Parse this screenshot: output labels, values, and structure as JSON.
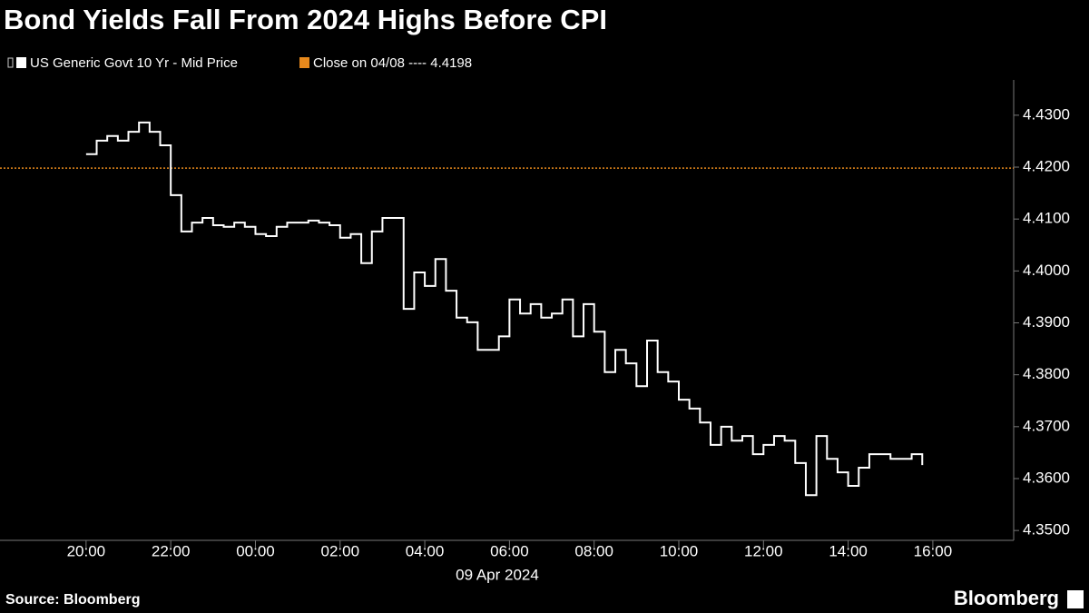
{
  "chart_data": {
    "type": "line",
    "title": "Bond Yields Fall From 2024 Highs Before CPI",
    "x_label": "09 Apr 2024",
    "source": "Source: Bloomberg",
    "brand": "Bloomberg",
    "x": [
      "20:00",
      "20:15",
      "20:30",
      "20:45",
      "21:00",
      "21:15",
      "21:30",
      "21:45",
      "22:00",
      "22:15",
      "22:30",
      "22:45",
      "23:00",
      "23:15",
      "23:30",
      "23:45",
      "00:00",
      "00:15",
      "00:30",
      "00:45",
      "01:00",
      "01:15",
      "01:30",
      "01:45",
      "02:00",
      "02:15",
      "02:30",
      "02:45",
      "03:00",
      "03:15",
      "03:30",
      "03:45",
      "04:00",
      "04:15",
      "04:30",
      "04:45",
      "05:00",
      "05:15",
      "05:30",
      "05:45",
      "06:00",
      "06:15",
      "06:30",
      "06:45",
      "07:00",
      "07:15",
      "07:30",
      "07:45",
      "08:00",
      "08:15",
      "08:30",
      "08:45",
      "09:00",
      "09:15",
      "09:30",
      "09:45",
      "10:00",
      "10:15",
      "10:30",
      "10:45",
      "11:00",
      "11:15",
      "11:30",
      "11:45",
      "12:00",
      "12:15",
      "12:30",
      "12:45",
      "13:00",
      "13:15",
      "13:30",
      "13:45",
      "14:00",
      "14:15",
      "14:30",
      "14:45",
      "15:00",
      "15:15",
      "15:30",
      "15:45"
    ],
    "series": [
      {
        "name": "US Generic Govt 10 Yr - Mid Price",
        "color": "#ffffff",
        "values": [
          4.4225,
          4.4251,
          4.426,
          4.4251,
          4.4268,
          4.4286,
          4.4268,
          4.4242,
          4.4146,
          4.4076,
          4.4093,
          4.4102,
          4.4088,
          4.4085,
          4.4093,
          4.4085,
          4.4071,
          4.4067,
          4.4085,
          4.4093,
          4.4093,
          4.4097,
          4.4093,
          4.4088,
          4.4064,
          4.4071,
          4.4015,
          4.4076,
          4.4102,
          4.4102,
          4.3927,
          4.3997,
          4.3971,
          4.4023,
          4.3962,
          4.391,
          4.3901,
          4.3848,
          4.3848,
          4.3874,
          4.3945,
          4.3918,
          4.3936,
          4.391,
          4.3918,
          4.3945,
          4.3874,
          4.3936,
          4.3883,
          4.3805,
          4.3848,
          4.3822,
          4.3778,
          4.3866,
          4.3805,
          4.3787,
          4.3752,
          4.3735,
          4.3708,
          4.3665,
          4.37,
          4.3673,
          4.3682,
          4.3647,
          4.3665,
          4.3682,
          4.3673,
          4.363,
          4.3568,
          4.3682,
          4.3638,
          4.3612,
          4.3586,
          4.3621,
          4.3647,
          4.3647,
          4.3638,
          4.3638,
          4.3647,
          4.3626
        ]
      }
    ],
    "reference_line": {
      "label": "Close on 04/08 ---- 4.4198",
      "value": 4.4198,
      "color": "#e8891c"
    },
    "xlim": [
      "17:58",
      "17:52"
    ],
    "xticks": [
      "20:00",
      "22:00",
      "00:00",
      "02:00",
      "04:00",
      "06:00",
      "08:00",
      "10:00",
      "12:00",
      "14:00",
      "16:00"
    ],
    "ylim": [
      4.3481,
      4.4368
    ],
    "yticks": [
      {
        "value": 4.35,
        "label": "4.3500"
      },
      {
        "value": 4.36,
        "label": "4.3600"
      },
      {
        "value": 4.37,
        "label": "4.3700"
      },
      {
        "value": 4.38,
        "label": "4.3800"
      },
      {
        "value": 4.39,
        "label": "4.3900"
      },
      {
        "value": 4.4,
        "label": "4.4000"
      },
      {
        "value": 4.41,
        "label": "4.4100"
      },
      {
        "value": 4.42,
        "label": "4.4200"
      },
      {
        "value": 4.43,
        "label": "4.4300"
      }
    ]
  }
}
